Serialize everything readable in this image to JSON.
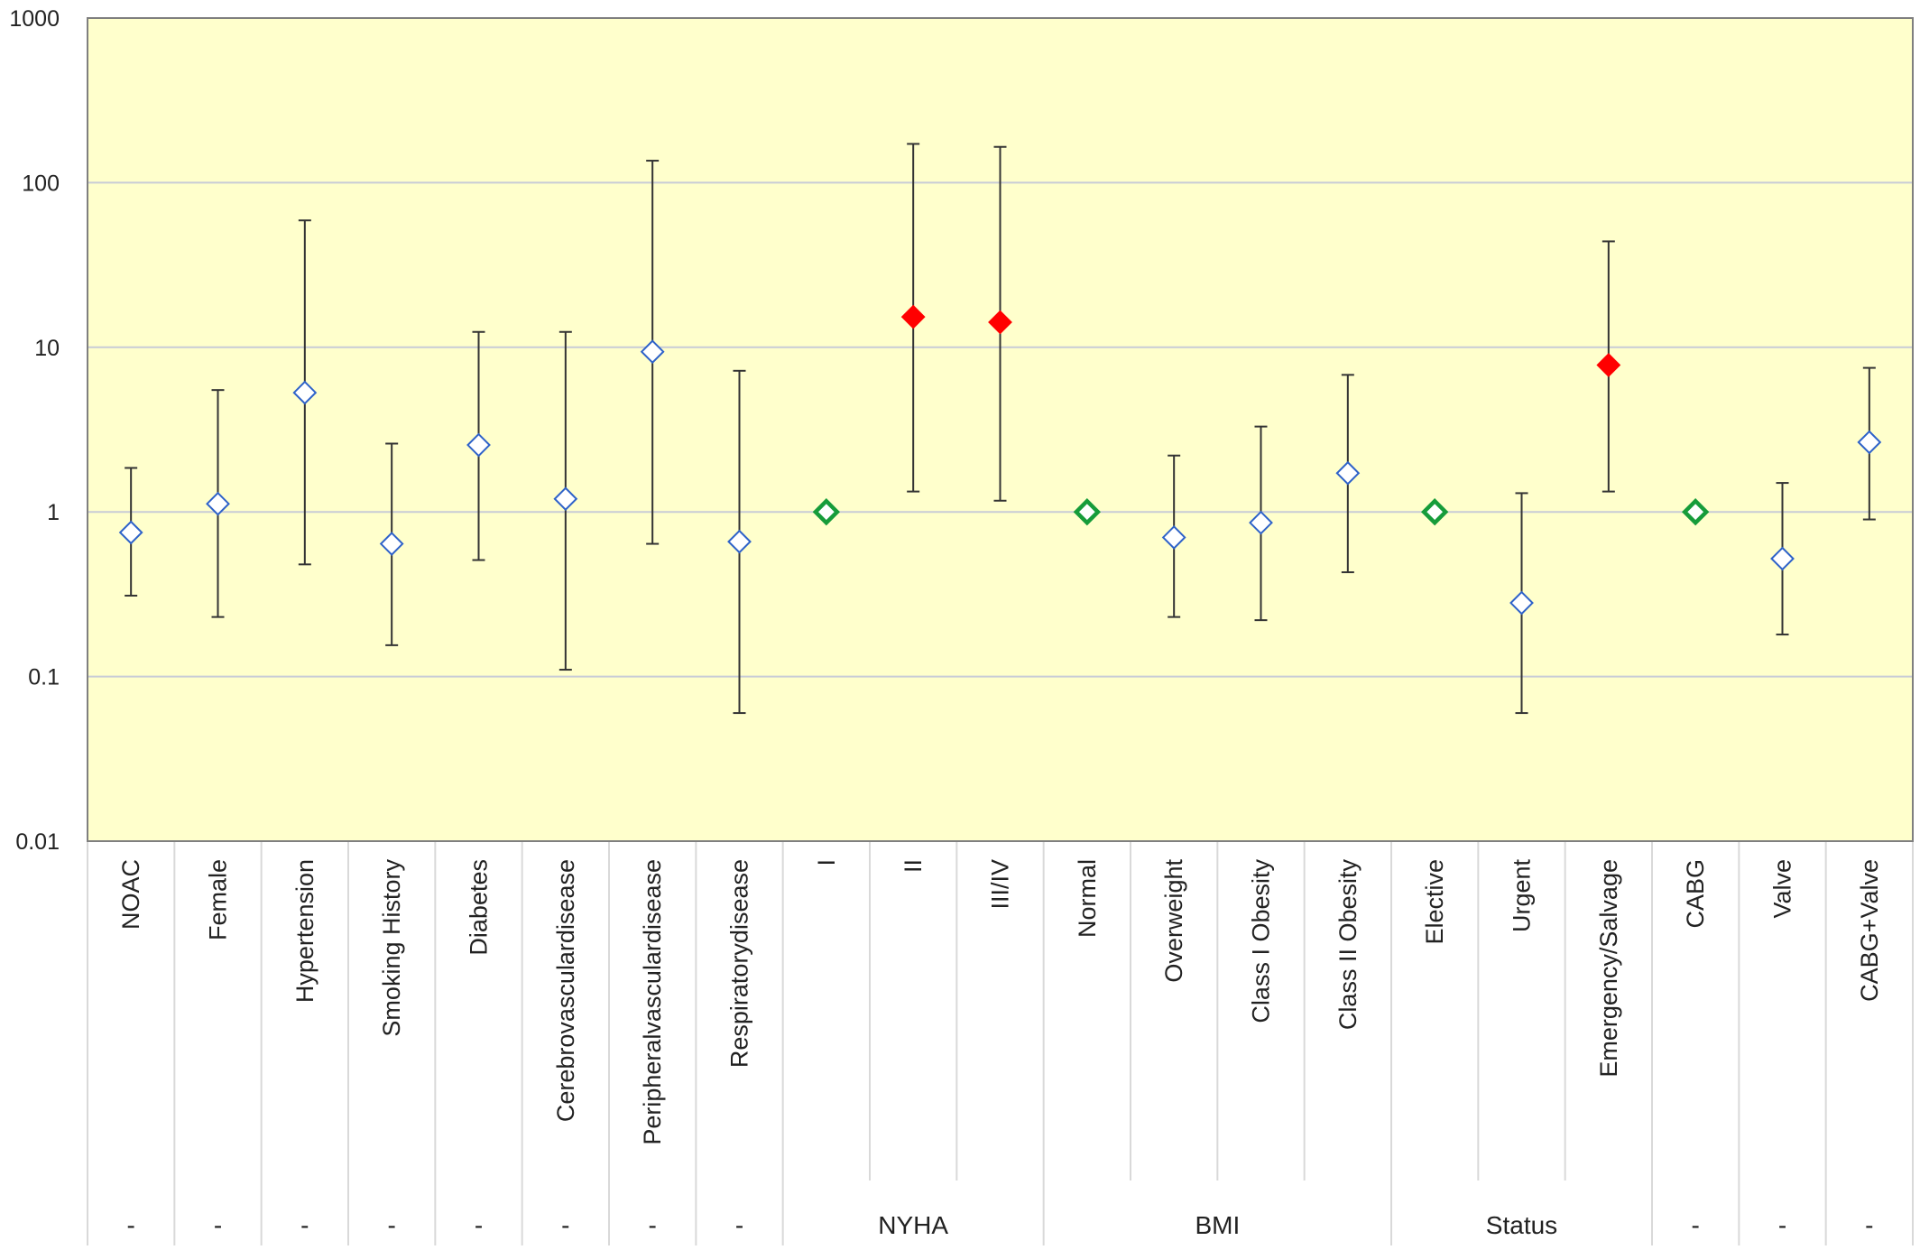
{
  "chart_data": {
    "type": "scatter",
    "y_scale": "log",
    "ylim": [
      0.01,
      1000
    ],
    "y_ticks": [
      "0.01",
      "0.1",
      "1",
      "10",
      "100",
      "1000"
    ],
    "grid": true,
    "legend": "none",
    "colors": {
      "plot_background": "#ffffcc",
      "default_marker": "#2e62c9",
      "reference_marker": "#169c3a",
      "significant_marker": "#ff0000",
      "error_bar": "#333333",
      "gridline": "#c8cbd6"
    },
    "categories": [
      "NOAC",
      "Female",
      "Hypertension",
      "Smoking History",
      "Diabetes",
      "Cerebrovasculardisease",
      "Peripheralvasculardisease",
      "Respiratorydisease",
      "I",
      "II",
      "III/IV",
      "Normal",
      "Overweight",
      "Class I Obesity",
      "Class II Obesity",
      "Elective",
      "Urgent",
      "Emergency/Salvage",
      "CABG",
      "Valve",
      "CABG+Valve"
    ],
    "points": [
      {
        "label": "NOAC",
        "value": 0.75,
        "lower": 0.31,
        "upper": 1.85,
        "marker": "open"
      },
      {
        "label": "Female",
        "value": 1.12,
        "lower": 0.23,
        "upper": 5.5,
        "marker": "open"
      },
      {
        "label": "Hypertension",
        "value": 5.3,
        "lower": 0.48,
        "upper": 59,
        "marker": "open"
      },
      {
        "label": "Smoking History",
        "value": 0.64,
        "lower": 0.155,
        "upper": 2.6,
        "marker": "open"
      },
      {
        "label": "Diabetes",
        "value": 2.55,
        "lower": 0.51,
        "upper": 12.4,
        "marker": "open"
      },
      {
        "label": "Cerebrovasculardisease",
        "value": 1.2,
        "lower": 0.11,
        "upper": 12.4,
        "marker": "open"
      },
      {
        "label": "Peripheralvasculardisease",
        "value": 9.4,
        "lower": 0.64,
        "upper": 136,
        "marker": "open"
      },
      {
        "label": "Respiratorydisease",
        "value": 0.66,
        "lower": 0.06,
        "upper": 7.2,
        "marker": "open"
      },
      {
        "label": "I",
        "value": 1,
        "marker": "reference"
      },
      {
        "label": "II",
        "value": 15.3,
        "lower": 1.33,
        "upper": 172,
        "marker": "significant"
      },
      {
        "label": "III/IV",
        "value": 14.2,
        "lower": 1.17,
        "upper": 165,
        "marker": "significant"
      },
      {
        "label": "Normal",
        "value": 1,
        "marker": "reference"
      },
      {
        "label": "Overweight",
        "value": 0.7,
        "lower": 0.23,
        "upper": 2.2,
        "marker": "open"
      },
      {
        "label": "Class I Obesity",
        "value": 0.86,
        "lower": 0.22,
        "upper": 3.3,
        "marker": "open"
      },
      {
        "label": "Class II Obesity",
        "value": 1.72,
        "lower": 0.43,
        "upper": 6.8,
        "marker": "open"
      },
      {
        "label": "Elective",
        "value": 1,
        "marker": "reference"
      },
      {
        "label": "Urgent",
        "value": 0.28,
        "lower": 0.06,
        "upper": 1.3,
        "marker": "open"
      },
      {
        "label": "Emergency/Salvage",
        "value": 7.8,
        "lower": 1.33,
        "upper": 44,
        "marker": "significant"
      },
      {
        "label": "CABG",
        "value": 1,
        "marker": "reference"
      },
      {
        "label": "Valve",
        "value": 0.52,
        "lower": 0.18,
        "upper": 1.5,
        "marker": "open"
      },
      {
        "label": "CABG+Valve",
        "value": 2.65,
        "lower": 0.9,
        "upper": 7.5,
        "marker": "open"
      }
    ],
    "groups": [
      {
        "label": "-",
        "start": 0,
        "end": 0
      },
      {
        "label": "-",
        "start": 1,
        "end": 1
      },
      {
        "label": "-",
        "start": 2,
        "end": 2
      },
      {
        "label": "-",
        "start": 3,
        "end": 3
      },
      {
        "label": "-",
        "start": 4,
        "end": 4
      },
      {
        "label": "-",
        "start": 5,
        "end": 5
      },
      {
        "label": "-",
        "start": 6,
        "end": 6
      },
      {
        "label": "-",
        "start": 7,
        "end": 7
      },
      {
        "label": "NYHA",
        "start": 8,
        "end": 10
      },
      {
        "label": "BMI",
        "start": 11,
        "end": 14
      },
      {
        "label": "Status",
        "start": 15,
        "end": 17
      },
      {
        "label": "-",
        "start": 18,
        "end": 18
      },
      {
        "label": "-",
        "start": 19,
        "end": 19
      },
      {
        "label": "-",
        "start": 20,
        "end": 20
      }
    ]
  }
}
